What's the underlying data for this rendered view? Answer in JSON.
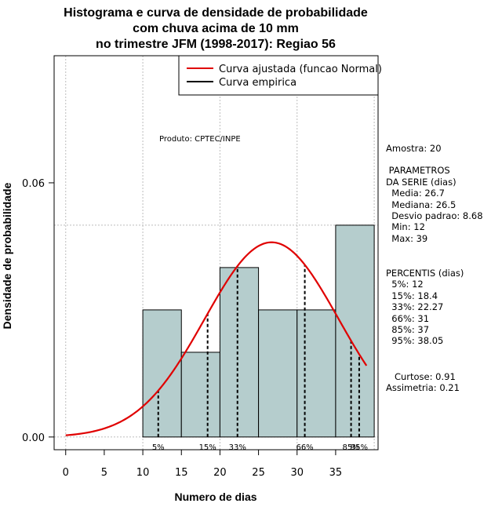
{
  "chart_data": {
    "type": "bar",
    "title_lines": [
      "Histograma e curva de densidade de probabilidade",
      "com chuva acima de 10 mm",
      "no trimestre JFM (1998-2017): Regiao 56"
    ],
    "xlabel": "Numero de dias",
    "ylabel": "Densidade de probabilidade",
    "xlim": [
      -1.5,
      40.5
    ],
    "ylim": [
      -0.003,
      0.09
    ],
    "x_ticks": [
      0,
      5,
      10,
      15,
      20,
      25,
      30,
      35
    ],
    "y_ticks": [
      0.0,
      0.06
    ],
    "y_tick_labels": [
      "0.00",
      "0.06"
    ],
    "grid": true,
    "grid_x": [
      0,
      10,
      20,
      30,
      40
    ],
    "grid_y": [
      0.05
    ],
    "bins": [
      {
        "start": 10,
        "end": 15,
        "density": 0.03
      },
      {
        "start": 15,
        "end": 20,
        "density": 0.02
      },
      {
        "start": 20,
        "end": 25,
        "density": 0.04
      },
      {
        "start": 25,
        "end": 30,
        "density": 0.03
      },
      {
        "start": 30,
        "end": 35,
        "density": 0.03
      },
      {
        "start": 35,
        "end": 40,
        "density": 0.05
      }
    ],
    "normal_fit": {
      "mean": 26.7,
      "sd": 8.68,
      "x_range": [
        0,
        39
      ],
      "color": "#e00000"
    },
    "percentiles": [
      {
        "label": "5%",
        "x": 12
      },
      {
        "label": "15%",
        "x": 18.4
      },
      {
        "label": "33%",
        "x": 22.27
      },
      {
        "label": "66%",
        "x": 31
      },
      {
        "label": "85%",
        "x": 37
      },
      {
        "label": "95%",
        "x": 38.05
      }
    ],
    "legend": {
      "placement": "top-right",
      "entries": [
        {
          "label": "Curva ajustada (funcao Normal)",
          "color": "#e00000"
        },
        {
          "label": "Curva empirica",
          "color": "#000000"
        }
      ]
    },
    "annotation": "Produto: CPTEC/INPE",
    "bar_color": "#b5cdcd"
  },
  "stats_panel": {
    "amostra": "Amostra: 20",
    "parametros_title": [
      " PARAMETROS",
      "DA SERIE (dias)"
    ],
    "parametros": [
      "  Media: 26.7",
      "  Mediana: 26.5",
      "  Desvio padrao: 8.68",
      "  Min: 12",
      "  Max: 39"
    ],
    "percentis_title": "PERCENTIS (dias)",
    "percentis": [
      "  5%: 12",
      "  15%: 18.4",
      "  33%: 22.27",
      "  66%: 31",
      "  85%: 37",
      "  95%: 38.05"
    ],
    "curtose": "   Curtose: 0.91",
    "assimetria": "Assimetria: 0.21"
  }
}
